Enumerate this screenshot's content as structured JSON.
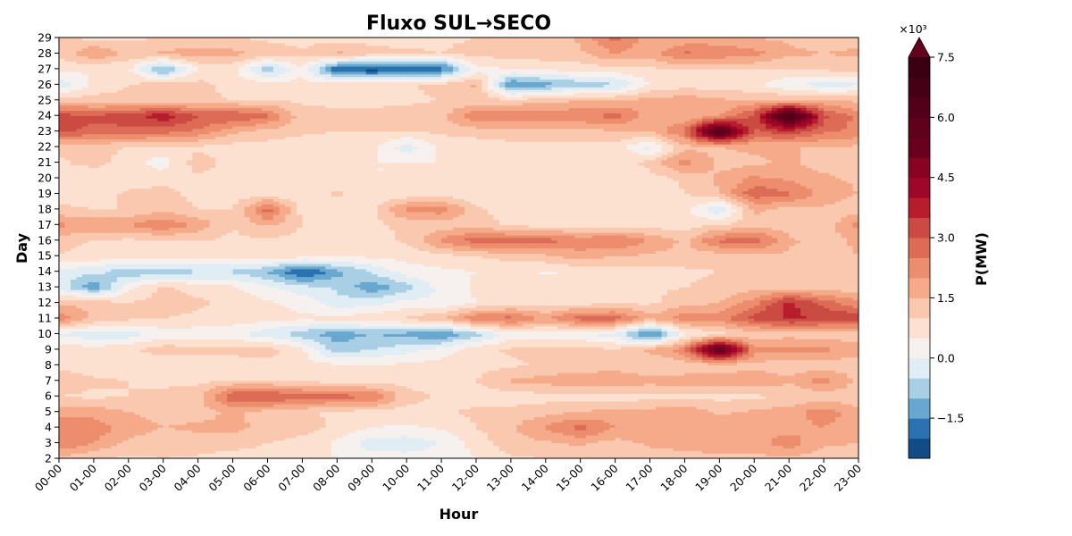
{
  "chart_data": {
    "type": "heatmap",
    "title": "Fluxo SUL→SECO",
    "xlabel": "Hour",
    "ylabel": "Day",
    "x_ticks": [
      "00-00",
      "01-00",
      "02-00",
      "03-00",
      "04-00",
      "05-00",
      "06-00",
      "07-00",
      "08-00",
      "09-00",
      "10-00",
      "11-00",
      "12-00",
      "13-00",
      "14-00",
      "15-00",
      "16-00",
      "17-00",
      "18-00",
      "19-00",
      "20-00",
      "21-00",
      "22-00",
      "23-00"
    ],
    "y_ticks": [
      2,
      3,
      4,
      5,
      6,
      7,
      8,
      9,
      10,
      11,
      12,
      13,
      14,
      15,
      16,
      17,
      18,
      19,
      20,
      21,
      22,
      23,
      24,
      25,
      26,
      27,
      28,
      29
    ],
    "xlim": [
      0,
      23
    ],
    "ylim": [
      2,
      29
    ],
    "colorbar": {
      "label": "P(MW)",
      "multiplier": "×10³",
      "ticks": [
        "−1.5",
        "0.0",
        "1.5",
        "3.0",
        "4.5",
        "6.0",
        "7.5"
      ],
      "tick_values": [
        -1.5,
        0.0,
        1.5,
        3.0,
        4.5,
        6.0,
        7.5
      ],
      "vmin": -2.5,
      "vmax": 7.5,
      "levels": [
        -2.5,
        -2.0,
        -1.5,
        -1.0,
        -0.5,
        0.0,
        0.5,
        1.0,
        1.5,
        2.0,
        2.5,
        3.0,
        3.5,
        4.0,
        4.5,
        5.0,
        5.5,
        6.0,
        6.5,
        7.0,
        7.5
      ],
      "colors": [
        "#134b87",
        "#2b72b1",
        "#68a7cf",
        "#a9cfe5",
        "#e1edf4",
        "#f6f1ee",
        "#fce0d0",
        "#fac8ae",
        "#f5aa89",
        "#ec8d6d",
        "#dd6c56",
        "#cb4b43",
        "#b71d2d",
        "#9e0727",
        "#880322",
        "#6a0020",
        "#5f001c",
        "#52001a",
        "#460016",
        "#3a0012"
      ],
      "extend": "max"
    },
    "series": [
      {
        "day": 2,
        "values": [
          1.3,
          1.0,
          0.9,
          1.0,
          0.9,
          0.7,
          0.6,
          0.7,
          0.5,
          0.3,
          0.2,
          0.3,
          0.5,
          0.9,
          1.0,
          1.1,
          1.0,
          1.2,
          1.3,
          1.4,
          1.3,
          1.4,
          1.2,
          1.2
        ]
      },
      {
        "day": 3,
        "values": [
          2.5,
          2.0,
          1.4,
          1.1,
          1.3,
          1.3,
          1.0,
          0.8,
          0.4,
          -0.3,
          -0.3,
          0.0,
          0.7,
          1.3,
          1.4,
          1.6,
          1.3,
          1.6,
          1.7,
          1.7,
          1.8,
          2.3,
          1.6,
          1.5
        ]
      },
      {
        "day": 4,
        "values": [
          2.4,
          2.3,
          1.8,
          1.5,
          1.6,
          1.6,
          1.4,
          1.2,
          0.9,
          0.5,
          0.4,
          0.6,
          1.0,
          1.4,
          2.1,
          2.7,
          2.0,
          1.9,
          1.9,
          1.8,
          1.8,
          1.8,
          2.0,
          1.7
        ]
      },
      {
        "day": 5,
        "values": [
          1.8,
          1.8,
          1.5,
          1.2,
          1.3,
          1.6,
          1.3,
          1.1,
          0.9,
          0.8,
          0.8,
          0.9,
          1.1,
          1.2,
          1.3,
          1.5,
          1.7,
          1.7,
          1.9,
          1.4,
          1.6,
          1.8,
          2.3,
          1.7
        ]
      },
      {
        "day": 6,
        "values": [
          1.0,
          0.9,
          1.0,
          1.1,
          1.3,
          3.0,
          3.1,
          2.8,
          2.7,
          2.6,
          1.2,
          0.9,
          0.8,
          0.7,
          0.8,
          0.8,
          0.7,
          0.8,
          0.9,
          0.8,
          0.9,
          1.0,
          1.2,
          1.1
        ]
      },
      {
        "day": 7,
        "values": [
          1.3,
          1.1,
          1.0,
          0.9,
          0.9,
          1.0,
          1.0,
          0.9,
          0.8,
          0.7,
          0.8,
          0.9,
          1.0,
          1.6,
          1.7,
          2.0,
          2.0,
          1.7,
          1.8,
          1.8,
          1.9,
          1.6,
          2.3,
          1.4
        ]
      },
      {
        "day": 8,
        "values": [
          0.9,
          0.7,
          0.6,
          0.5,
          0.6,
          0.7,
          0.7,
          0.6,
          0.6,
          0.5,
          0.6,
          0.7,
          0.8,
          0.9,
          1.1,
          1.1,
          1.2,
          1.0,
          1.1,
          1.2,
          1.3,
          1.2,
          1.2,
          1.1
        ]
      },
      {
        "day": 9,
        "values": [
          0.9,
          0.7,
          0.9,
          1.3,
          1.2,
          1.2,
          1.3,
          0.6,
          -0.8,
          -0.5,
          -0.2,
          0.2,
          0.8,
          1.1,
          1.1,
          1.3,
          1.0,
          1.6,
          2.4,
          6.2,
          2.2,
          2.2,
          2.1,
          1.9
        ]
      },
      {
        "day": 10,
        "values": [
          -0.1,
          -0.3,
          -0.3,
          0.2,
          0.2,
          0.1,
          -0.3,
          -0.8,
          -1.3,
          -1.0,
          -1.2,
          -1.5,
          -0.7,
          0.2,
          0.2,
          0.0,
          -0.2,
          -1.9,
          0.3,
          0.8,
          1.1,
          1.3,
          1.2,
          1.1
        ]
      },
      {
        "day": 11,
        "values": [
          2.3,
          1.4,
          1.1,
          1.0,
          0.9,
          0.8,
          0.7,
          0.6,
          0.7,
          0.8,
          1.1,
          1.5,
          2.5,
          2.7,
          1.9,
          2.8,
          2.8,
          1.7,
          2.3,
          2.3,
          3.2,
          3.6,
          3.4,
          3.5
        ]
      },
      {
        "day": 12,
        "values": [
          1.4,
          1.3,
          1.0,
          1.2,
          1.1,
          0.8,
          0.6,
          0.3,
          -0.3,
          -0.2,
          0.2,
          0.0,
          0.5,
          0.7,
          0.8,
          0.8,
          0.9,
          0.9,
          1.3,
          1.5,
          2.3,
          3.7,
          2.8,
          2.1
        ]
      },
      {
        "day": 13,
        "values": [
          -0.2,
          -1.4,
          0.3,
          1.1,
          0.8,
          0.6,
          0.1,
          -0.3,
          -0.6,
          -1.4,
          -0.7,
          0.2,
          0.6,
          0.7,
          0.8,
          0.8,
          0.9,
          0.9,
          1.0,
          1.1,
          1.3,
          1.3,
          1.2,
          1.2
        ]
      },
      {
        "day": 14,
        "values": [
          -0.3,
          -0.3,
          -0.9,
          -0.8,
          -0.6,
          -0.6,
          -1.0,
          -2.2,
          -1.2,
          -0.4,
          0.2,
          0.4,
          0.5,
          0.7,
          0.4,
          0.6,
          0.7,
          0.8,
          0.9,
          1.0,
          1.1,
          1.2,
          1.1,
          1.0
        ]
      },
      {
        "day": 15,
        "values": [
          1.0,
          0.8,
          0.7,
          0.7,
          0.8,
          0.8,
          0.8,
          0.7,
          0.6,
          0.6,
          0.7,
          0.8,
          1.0,
          1.2,
          1.4,
          1.8,
          1.5,
          1.4,
          1.3,
          1.2,
          1.3,
          1.4,
          1.3,
          1.5
        ]
      },
      {
        "day": 16,
        "values": [
          1.2,
          1.0,
          0.9,
          0.9,
          1.0,
          0.9,
          0.9,
          0.8,
          0.8,
          0.8,
          1.1,
          2.1,
          2.8,
          2.7,
          2.7,
          2.3,
          2.6,
          2.0,
          1.4,
          2.6,
          2.9,
          1.6,
          1.3,
          1.6
        ]
      },
      {
        "day": 17,
        "values": [
          2.1,
          1.9,
          2.0,
          2.5,
          1.9,
          1.0,
          1.6,
          1.0,
          0.9,
          0.9,
          1.1,
          1.2,
          1.3,
          0.9,
          0.8,
          0.8,
          0.7,
          0.7,
          0.8,
          1.0,
          1.3,
          1.2,
          1.1,
          2.2
        ]
      },
      {
        "day": 18,
        "values": [
          1.1,
          1.0,
          1.0,
          1.3,
          1.0,
          1.0,
          2.8,
          0.8,
          0.7,
          0.8,
          2.2,
          2.3,
          1.1,
          0.7,
          0.6,
          0.6,
          0.6,
          0.6,
          0.6,
          -0.5,
          1.6,
          1.3,
          1.4,
          1.2
        ]
      },
      {
        "day": 19,
        "values": [
          0.8,
          0.7,
          1.1,
          1.2,
          0.8,
          0.7,
          0.7,
          0.6,
          1.1,
          0.6,
          0.6,
          0.7,
          0.7,
          0.6,
          0.5,
          0.6,
          0.6,
          0.7,
          1.0,
          1.5,
          2.9,
          2.6,
          1.8,
          1.5
        ]
      },
      {
        "day": 20,
        "values": [
          0.9,
          0.5,
          0.7,
          0.8,
          0.9,
          0.8,
          0.7,
          0.6,
          0.5,
          0.5,
          0.5,
          0.6,
          0.7,
          0.6,
          0.5,
          0.5,
          0.6,
          0.8,
          1.1,
          1.6,
          2.1,
          1.9,
          1.6,
          1.4
        ]
      },
      {
        "day": 21,
        "values": [
          0.9,
          1.2,
          0.8,
          0.2,
          1.3,
          0.7,
          0.6,
          0.5,
          0.5,
          0.5,
          0.5,
          0.5,
          0.5,
          0.5,
          0.5,
          0.5,
          0.6,
          1.2,
          2.2,
          1.3,
          1.4,
          1.6,
          1.3,
          1.2
        ]
      },
      {
        "day": 22,
        "values": [
          1.2,
          1.1,
          1.0,
          0.9,
          0.9,
          0.8,
          0.8,
          0.7,
          0.7,
          0.6,
          -0.3,
          0.6,
          0.7,
          0.8,
          0.8,
          0.8,
          0.8,
          -0.2,
          1.3,
          1.5,
          1.6,
          1.5,
          1.5,
          1.4
        ]
      },
      {
        "day": 23,
        "values": [
          3.1,
          2.9,
          2.8,
          2.7,
          2.4,
          1.6,
          1.3,
          1.1,
          1.0,
          1.0,
          1.0,
          1.1,
          1.2,
          1.3,
          1.3,
          1.4,
          1.4,
          1.5,
          2.6,
          6.5,
          2.9,
          3.4,
          2.6,
          2.4
        ]
      },
      {
        "day": 24,
        "values": [
          3.2,
          3.1,
          3.3,
          3.9,
          3.0,
          3.1,
          2.6,
          1.2,
          1.1,
          1.1,
          1.2,
          1.4,
          2.4,
          2.5,
          2.4,
          2.4,
          2.7,
          1.8,
          1.6,
          2.0,
          3.2,
          7.0,
          3.2,
          2.3
        ]
      },
      {
        "day": 25,
        "values": [
          1.3,
          1.2,
          1.1,
          1.1,
          1.1,
          1.0,
          1.0,
          0.9,
          0.9,
          0.9,
          0.9,
          1.0,
          1.2,
          1.1,
          1.3,
          1.5,
          1.5,
          1.7,
          1.8,
          1.6,
          1.5,
          1.5,
          1.5,
          1.4
        ]
      },
      {
        "day": 26,
        "values": [
          -0.4,
          0.7,
          1.0,
          1.3,
          1.2,
          0.8,
          0.7,
          0.7,
          0.8,
          0.8,
          0.9,
          1.2,
          1.6,
          -1.6,
          -1.2,
          -0.8,
          -0.6,
          0.5,
          0.8,
          0.7,
          0.6,
          0.1,
          -0.3,
          -0.1
        ]
      },
      {
        "day": 27,
        "values": [
          0.6,
          0.5,
          0.6,
          -1.3,
          0.5,
          0.6,
          -0.8,
          0.4,
          -2.0,
          -2.3,
          -2.0,
          -1.9,
          0.3,
          0.5,
          0.6,
          0.7,
          0.8,
          0.9,
          1.0,
          0.9,
          1.0,
          1.0,
          1.1,
          1.2
        ]
      },
      {
        "day": 28,
        "values": [
          1.2,
          2.0,
          1.3,
          1.6,
          1.8,
          1.7,
          1.3,
          1.1,
          1.6,
          1.2,
          1.1,
          1.0,
          1.2,
          1.2,
          1.3,
          1.4,
          2.0,
          1.8,
          2.6,
          2.4,
          2.2,
          1.6,
          1.5,
          1.6
        ]
      },
      {
        "day": 29,
        "values": [
          1.0,
          0.9,
          0.9,
          1.0,
          1.1,
          1.0,
          0.9,
          0.8,
          0.8,
          0.8,
          0.8,
          0.9,
          1.0,
          1.1,
          1.2,
          1.6,
          2.7,
          1.6,
          1.6,
          1.7,
          1.5,
          1.4,
          1.3,
          1.3
        ]
      }
    ]
  }
}
